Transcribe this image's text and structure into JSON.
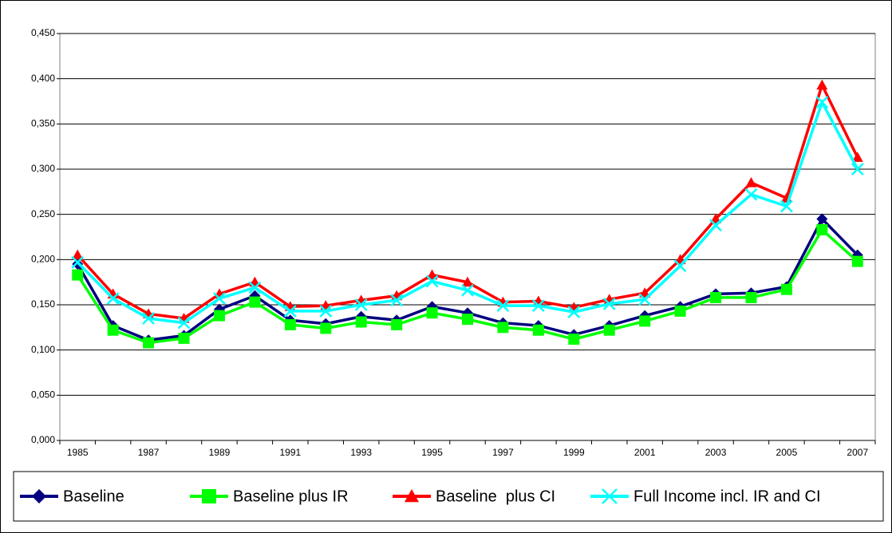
{
  "chart_data": {
    "type": "line",
    "categories": [
      "1985",
      null,
      "1987",
      null,
      "1989",
      null,
      "1991",
      null,
      "1993",
      null,
      "1995",
      null,
      "1997",
      null,
      "1999",
      null,
      "2001",
      null,
      "2003",
      null,
      "2005",
      null,
      "2007"
    ],
    "series": [
      {
        "name": "Baseline",
        "color": "#000080",
        "marker": "diamond",
        "values": [
          0.195,
          0.127,
          0.111,
          0.116,
          0.145,
          0.16,
          0.133,
          0.129,
          0.137,
          0.133,
          0.148,
          0.141,
          0.13,
          0.127,
          0.117,
          0.127,
          0.138,
          0.148,
          0.162,
          0.163,
          0.17,
          0.245,
          0.205
        ]
      },
      {
        "name": "Baseline plus IR",
        "color": "#00ff00",
        "marker": "square",
        "values": [
          0.183,
          0.122,
          0.108,
          0.113,
          0.138,
          0.153,
          0.128,
          0.124,
          0.131,
          0.128,
          0.141,
          0.134,
          0.125,
          0.122,
          0.112,
          0.122,
          0.132,
          0.143,
          0.158,
          0.158,
          0.167,
          0.233,
          0.198
        ]
      },
      {
        "name": "Baseline  plus CI",
        "color": "#ff0000",
        "marker": "triangle",
        "values": [
          0.205,
          0.162,
          0.14,
          0.135,
          0.162,
          0.175,
          0.148,
          0.149,
          0.155,
          0.16,
          0.183,
          0.175,
          0.153,
          0.154,
          0.147,
          0.156,
          0.163,
          0.2,
          0.245,
          0.285,
          0.268,
          0.393,
          0.313
        ]
      },
      {
        "name": "Full Income incl. IR and CI",
        "color": "#00ffff",
        "marker": "x",
        "values": [
          0.197,
          0.157,
          0.135,
          0.13,
          0.157,
          0.169,
          0.143,
          0.143,
          0.15,
          0.155,
          0.176,
          0.166,
          0.149,
          0.149,
          0.142,
          0.151,
          0.156,
          0.193,
          0.238,
          0.272,
          0.259,
          0.374,
          0.3
        ]
      }
    ],
    "ylim": [
      0,
      0.45
    ],
    "yticks": [
      {
        "value": 0,
        "label": "0,000"
      },
      {
        "value": 0.05,
        "label": "0,050"
      },
      {
        "value": 0.1,
        "label": "0,100"
      },
      {
        "value": 0.15,
        "label": "0,150"
      },
      {
        "value": 0.2,
        "label": "0,200"
      },
      {
        "value": 0.25,
        "label": "0,250"
      },
      {
        "value": 0.3,
        "label": "0,300"
      },
      {
        "value": 0.35,
        "label": "0,350"
      },
      {
        "value": 0.4,
        "label": "0,400"
      },
      {
        "value": 0.45,
        "label": "0,450"
      }
    ],
    "grid": true,
    "legend": "bottom"
  }
}
